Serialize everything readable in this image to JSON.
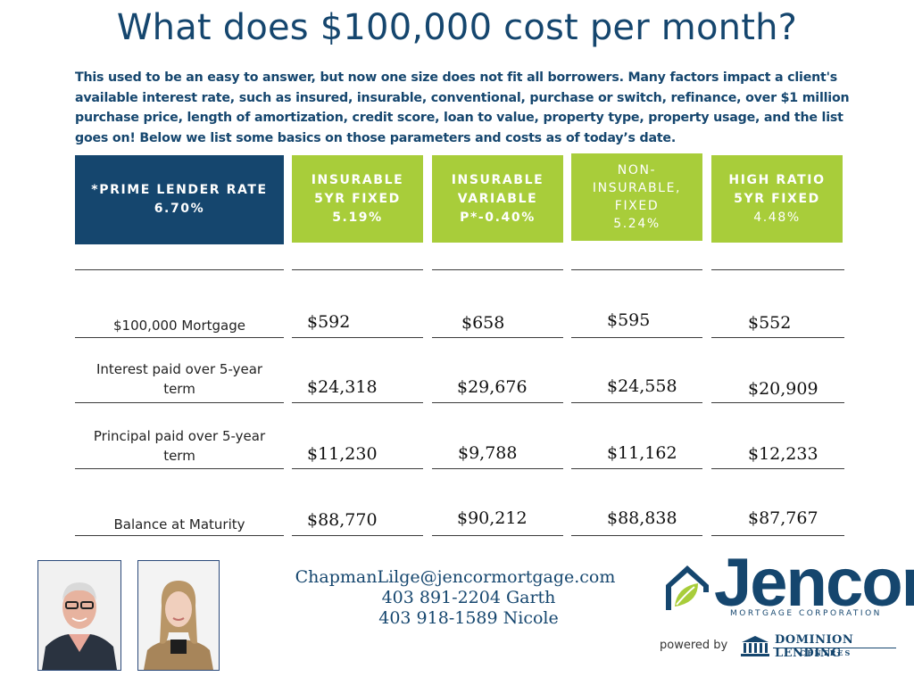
{
  "title": "What does $100,000 cost per month?",
  "intro": "This used to be an easy to answer, but now one size does not fit all borrowers. Many factors impact a client's available interest rate, such as insured, insurable, conventional, purchase or switch, refinance, over $1 million purchase price, length of amortization, credit score, loan to value, property type, property usage, and the list goes on! Below we list some basics on those parameters and costs as of today’s date.",
  "colors": {
    "navy": "#15466e",
    "green": "#a8cd3a",
    "white": "#ffffff"
  },
  "headers": {
    "prime": {
      "line1": "*PRIME LENDER RATE",
      "line2": "6.70%"
    },
    "col1": {
      "line1": "INSURABLE",
      "line2": "5YR FIXED",
      "rate": "5.19%"
    },
    "col2": {
      "line1": "INSURABLE",
      "line2": "VARIABLE",
      "rate": "P*-0.40%"
    },
    "col3": {
      "line1": "NON-",
      "line2": "INSURABLE,",
      "line3": "FIXED",
      "rate": "5.24%"
    },
    "col4": {
      "line1": "HIGH RATIO",
      "line2": "5YR FIXED",
      "rate": "4.48%"
    }
  },
  "rows": [
    {
      "label": "$100,000 Mortgage",
      "values": [
        "$592",
        "$658",
        "$595",
        "$552"
      ]
    },
    {
      "label1": "Interest paid over 5-year",
      "label2": "term",
      "values": [
        "$24,318",
        "$29,676",
        "$24,558",
        "$20,909"
      ]
    },
    {
      "label1": "Principal paid over 5-year",
      "label2": "term",
      "values": [
        "$11,230",
        "$9,788",
        "$11,162",
        "$12,233"
      ]
    },
    {
      "label": "Balance at Maturity",
      "values": [
        "$88,770",
        "$90,212",
        "$88,838",
        "$87,767"
      ]
    }
  ],
  "contact": {
    "email": "ChapmanLilge@jencormortgage.com",
    "phone1": "403 891-2204 Garth",
    "phone2": "403 918-1589 Nicole"
  },
  "logo": {
    "name": "Jencor",
    "tagline": "MORTGAGE CORPORATION",
    "powered_by": "powered by",
    "partner": "DOMINION LENDING",
    "partner_sub": "CENTRES"
  }
}
